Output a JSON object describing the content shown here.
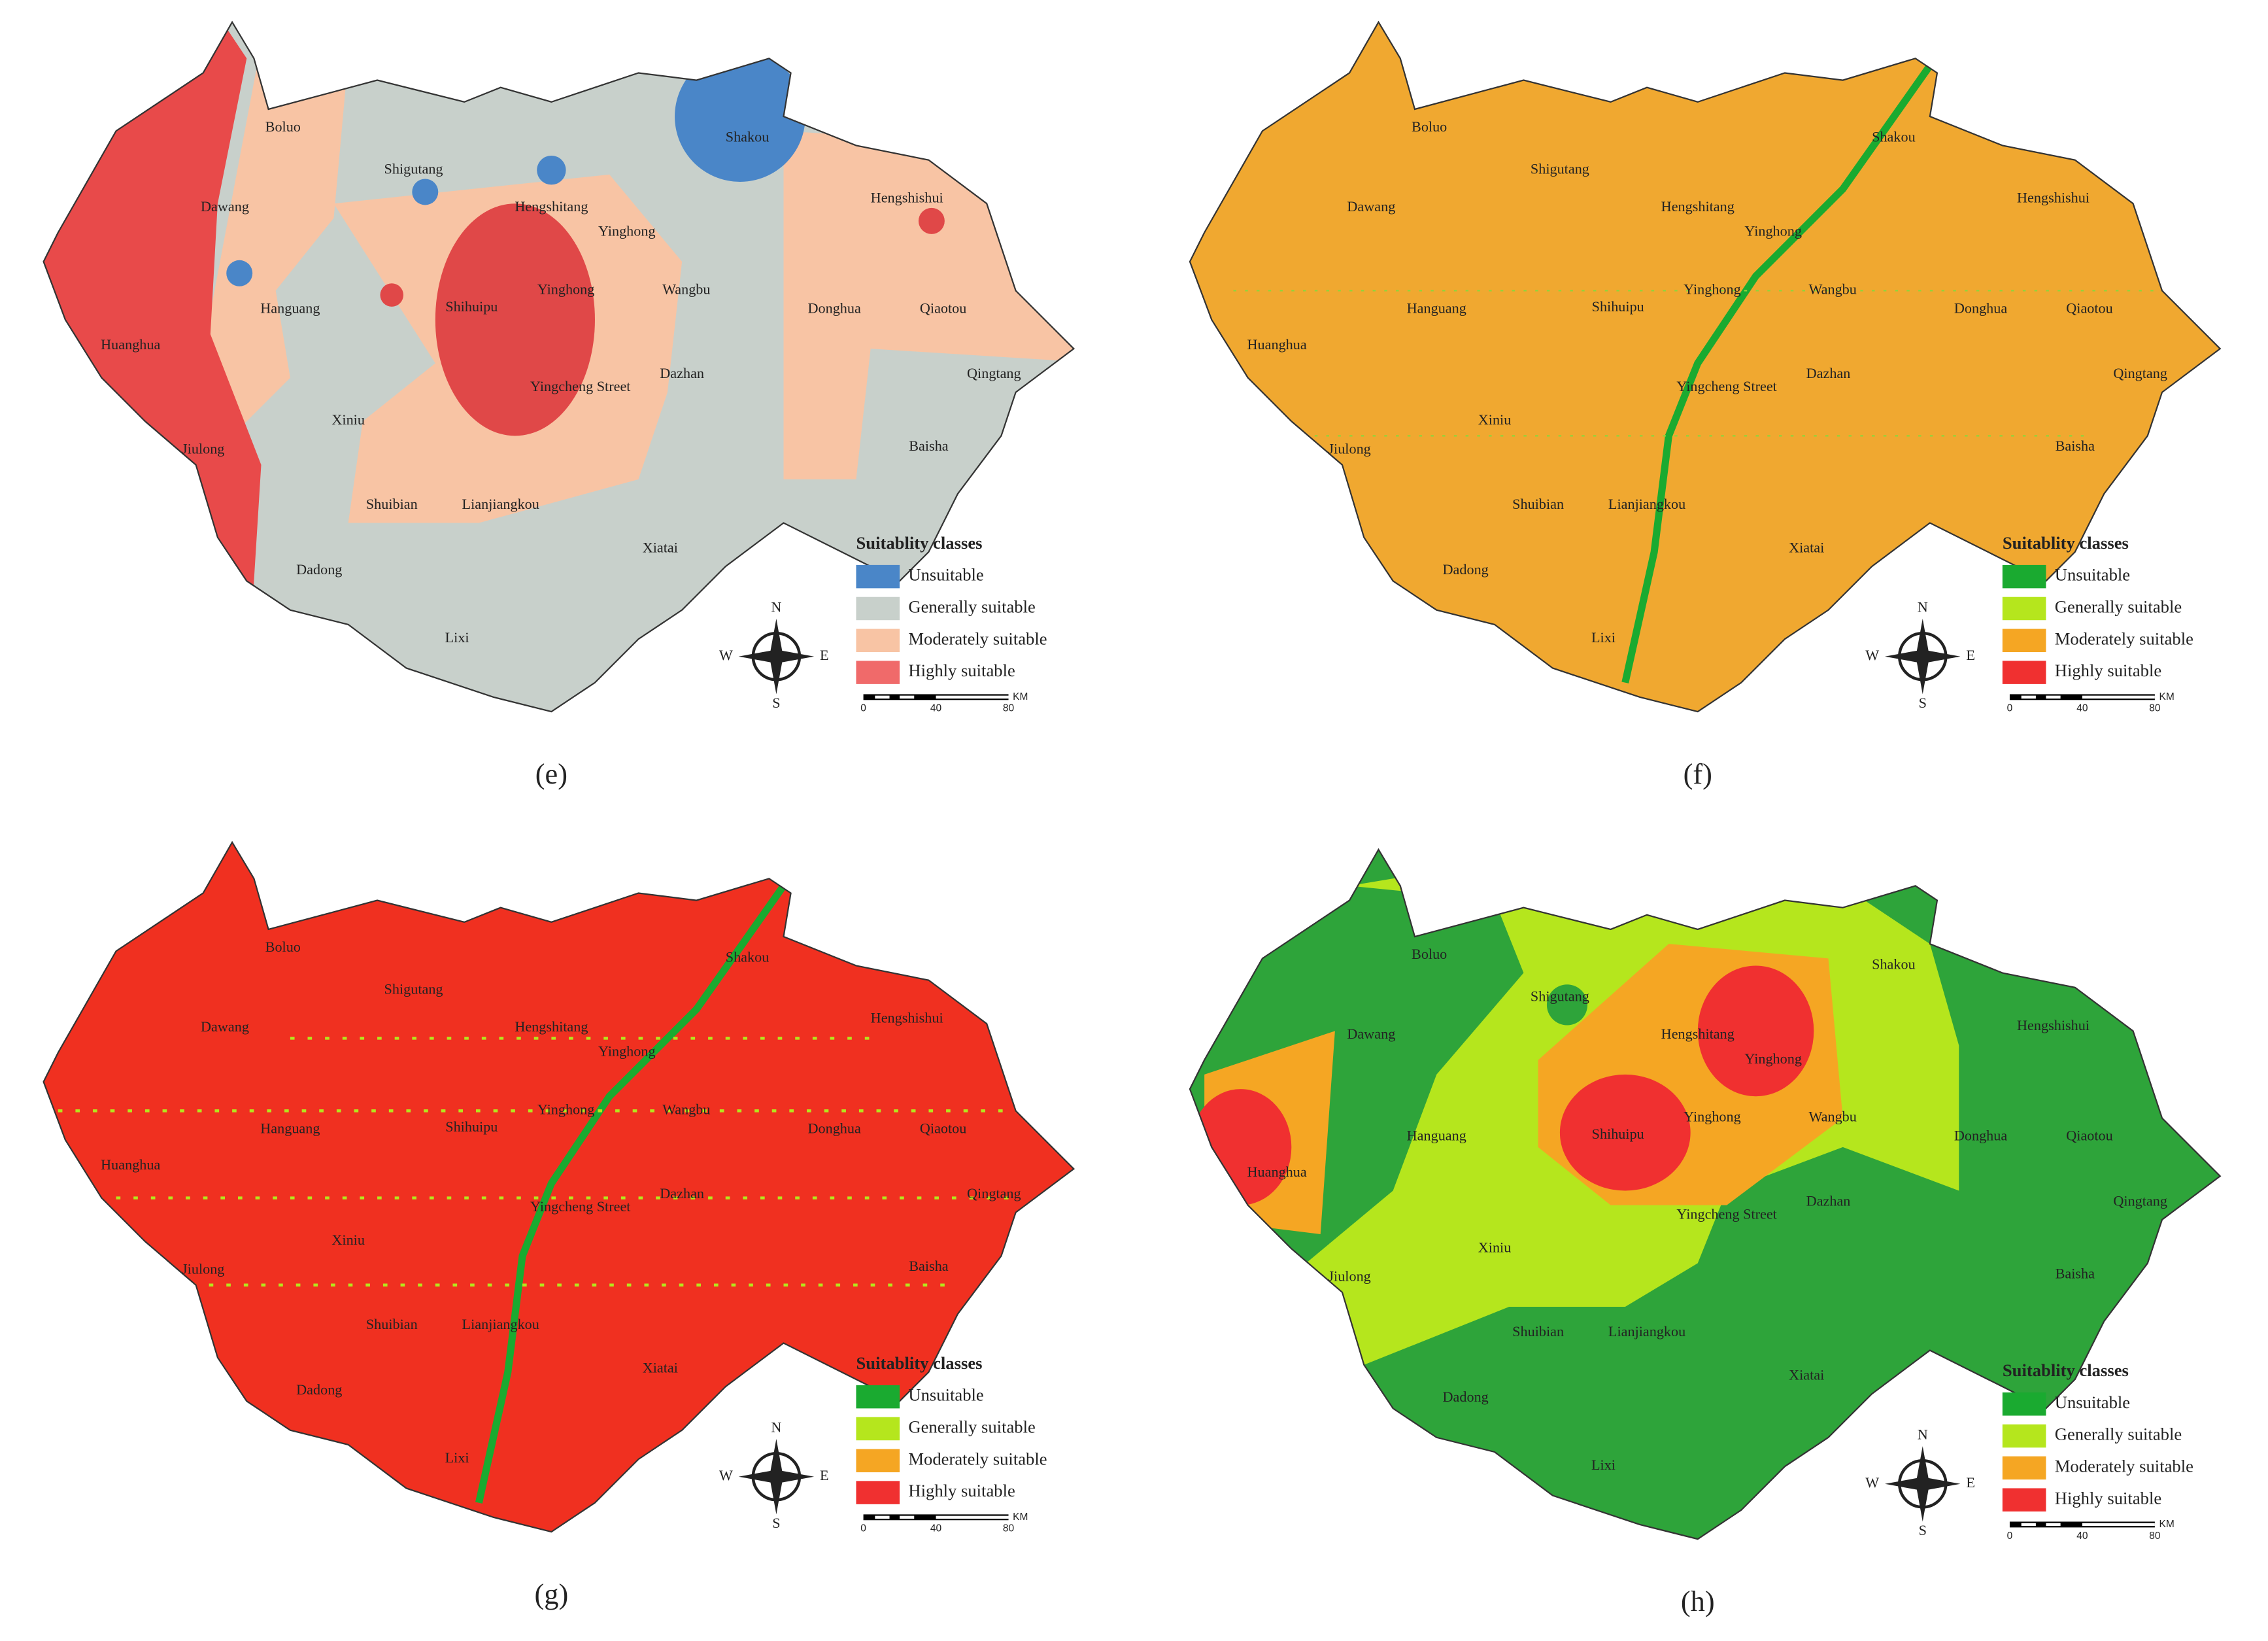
{
  "panels": [
    {
      "label": "(e)",
      "places": [
        "Boluo",
        "Dawang",
        "Shigutang",
        "Hengshitang",
        "Yinghong",
        "Shakou",
        "Hengshishui",
        "Hanguang",
        "Shihuipu",
        "Yinghong",
        "Wangbu",
        "Donghua",
        "Qiaotou",
        "Huanghua",
        "Yingcheng Street",
        "Dazhan",
        "Qingtang",
        "Xiniu",
        "Jiulong",
        "Baisha",
        "Shuibian",
        "Lianjiangkou",
        "Dadong",
        "Xiatai",
        "Lixi"
      ],
      "legend": {
        "title": "Suitablity classes",
        "items": [
          {
            "text": "Unsuitable",
            "color": "#4a86c8"
          },
          {
            "text": "Generally suitable",
            "color": "#c8d0cb"
          },
          {
            "text": "Moderately suitable",
            "color": "#f8c4a4"
          },
          {
            "text": "Highly suitable",
            "color": "#f06a6a"
          }
        ]
      },
      "compass": {
        "n": "N",
        "s": "S",
        "e": "E",
        "w": "W"
      },
      "scale": {
        "ticks": [
          "0",
          "40",
          "80"
        ],
        "unit": "KM"
      }
    },
    {
      "label": "(f)",
      "places": [
        "Boluo",
        "Dawang",
        "Shigutang",
        "Hengshitang",
        "Yinghong",
        "Shakou",
        "Hengshishui",
        "Hanguang",
        "Shihuipu",
        "Yinghong",
        "Wangbu",
        "Donghua",
        "Qiaotou",
        "Huanghua",
        "Yingcheng Street",
        "Dazhan",
        "Qingtang",
        "Xiniu",
        "Jiulong",
        "Baisha",
        "Shuibian",
        "Lianjiangkou",
        "Dadong",
        "Xiatai",
        "Lixi"
      ],
      "legend": {
        "title": "Suitablity classes",
        "items": [
          {
            "text": "Unsuitable",
            "color": "#1aaa30"
          },
          {
            "text": "Generally suitable",
            "color": "#b5e61d"
          },
          {
            "text": "Moderately suitable",
            "color": "#f5a623"
          },
          {
            "text": "Highly suitable",
            "color": "#f03030"
          }
        ]
      },
      "compass": {
        "n": "N",
        "s": "S",
        "e": "E",
        "w": "W"
      },
      "scale": {
        "ticks": [
          "0",
          "40",
          "80"
        ],
        "unit": "KM"
      }
    },
    {
      "label": "(g)",
      "places": [
        "Boluo",
        "Dawang",
        "Shigutang",
        "Hengshitang",
        "Yinghong",
        "Shakou",
        "Hengshishui",
        "Hanguang",
        "Shihuipu",
        "Yinghong",
        "Wangbu",
        "Donghua",
        "Qiaotou",
        "Huanghua",
        "Yingcheng Street",
        "Dazhan",
        "Qingtang",
        "Xiniu",
        "Jiulong",
        "Baisha",
        "Shuibian",
        "Lianjiangkou",
        "Dadong",
        "Xiatai",
        "Lixi"
      ],
      "legend": {
        "title": "Suitablity classes",
        "items": [
          {
            "text": "Unsuitable",
            "color": "#1aaa30"
          },
          {
            "text": "Generally suitable",
            "color": "#b5e61d"
          },
          {
            "text": "Moderately suitable",
            "color": "#f5a623"
          },
          {
            "text": "Highly suitable",
            "color": "#f03030"
          }
        ]
      },
      "compass": {
        "n": "N",
        "s": "S",
        "e": "E",
        "w": "W"
      },
      "scale": {
        "ticks": [
          "0",
          "40",
          "80"
        ],
        "unit": "KM"
      }
    },
    {
      "label": "(h)",
      "places": [
        "Boluo",
        "Dawang",
        "Shigutang",
        "Hengshitang",
        "Yinghong",
        "Shakou",
        "Hengshishui",
        "Hanguang",
        "Shihuipu",
        "Yinghong",
        "Wangbu",
        "Donghua",
        "Qiaotou",
        "Huanghua",
        "Yingcheng Street",
        "Dazhan",
        "Qingtang",
        "Xiniu",
        "Jiulong",
        "Baisha",
        "Shuibian",
        "Lianjiangkou",
        "Dadong",
        "Xiatai",
        "Lixi"
      ],
      "legend": {
        "title": "Suitablity classes",
        "items": [
          {
            "text": "Unsuitable",
            "color": "#1aaa30"
          },
          {
            "text": "Generally suitable",
            "color": "#b5e61d"
          },
          {
            "text": "Moderately suitable",
            "color": "#f5a623"
          },
          {
            "text": "Highly suitable",
            "color": "#f03030"
          }
        ]
      },
      "compass": {
        "n": "N",
        "s": "S",
        "e": "E",
        "w": "W"
      },
      "scale": {
        "ticks": [
          "0",
          "40",
          "80"
        ],
        "unit": "KM"
      }
    }
  ]
}
